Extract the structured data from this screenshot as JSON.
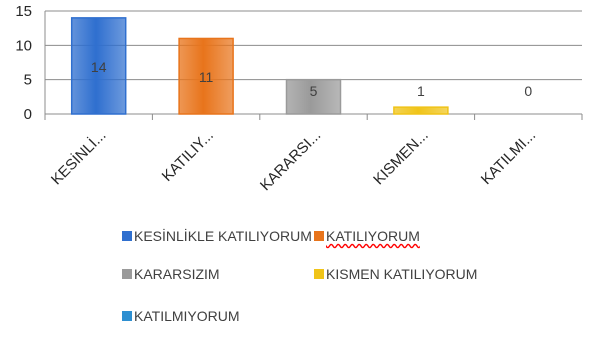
{
  "chart_data": {
    "type": "bar",
    "categories": [
      "KESİNLİKLE KATILIYORUM",
      "KATILIYORUM",
      "KARARSIZIM",
      "KISMEN KATILIYORUM",
      "KATILMIYORUM"
    ],
    "category_tick_labels": [
      "KESİNLİ...",
      "KATILIY...",
      "KARARSI...",
      "KISMEN...",
      "KATILMI..."
    ],
    "values": [
      14,
      11,
      5,
      1,
      0
    ],
    "data_labels": [
      "14",
      "11",
      "5",
      "1",
      "0"
    ],
    "colors": [
      "#2f6fcf",
      "#e8741b",
      "#9a9a9a",
      "#f0c419",
      "#2d8fd1"
    ],
    "ylim": [
      0,
      15
    ],
    "yticks": [
      0,
      5,
      10,
      15
    ],
    "grid": true,
    "legend": {
      "position": "bottom",
      "entries": [
        "KESİNLİKLE KATILIYORUM",
        "KATILIYORUM",
        "KARARSIZIM",
        "KISMEN KATILIYORUM",
        "KATILMIYORUM"
      ]
    },
    "title": "",
    "xlabel": "",
    "ylabel": ""
  }
}
